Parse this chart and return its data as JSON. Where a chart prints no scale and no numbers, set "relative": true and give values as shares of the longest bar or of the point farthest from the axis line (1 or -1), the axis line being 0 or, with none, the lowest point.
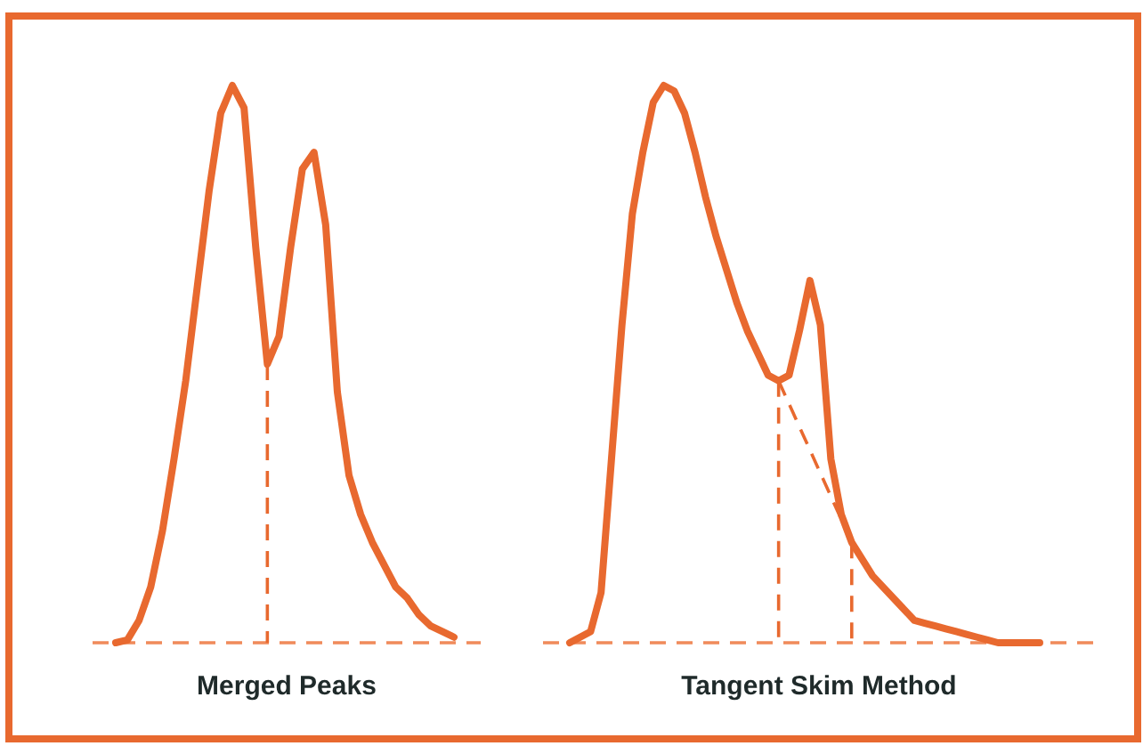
{
  "chart_data": [
    {
      "type": "line",
      "relative": true,
      "xlabel": "Merged Peaks",
      "marker": "none",
      "line_style": "solid",
      "categories": [
        null,
        null,
        null,
        null,
        null,
        null,
        null,
        null,
        null,
        null,
        null,
        null,
        null,
        null,
        null,
        null,
        null,
        null,
        null,
        null,
        null,
        null,
        null,
        null,
        null,
        null,
        null,
        null,
        null,
        null
      ],
      "series": [
        {
          "color": "#e8692f",
          "values": [
            0,
            0.005,
            0.04,
            0.1,
            0.2,
            0.33,
            0.47,
            0.64,
            0.81,
            0.95,
            1,
            0.96,
            0.71,
            0.5,
            0.55,
            0.71,
            0.85,
            0.88,
            0.75,
            0.45,
            0.3,
            0.23,
            0.18,
            0.14,
            0.1,
            0.08,
            0.05,
            0.03,
            0.02,
            0.01
          ]
        }
      ]
    },
    {
      "type": "line",
      "relative": true,
      "xlabel": "Tangent Skim Method",
      "marker": "none",
      "line_style": "solid",
      "categories": [
        null,
        null,
        null,
        null,
        null,
        null,
        null,
        null,
        null,
        null,
        null,
        null,
        null,
        null,
        null,
        null,
        null,
        null,
        null,
        null,
        null,
        null,
        null,
        null,
        null,
        null,
        null,
        null,
        null,
        null,
        null,
        null,
        null,
        null,
        null,
        null,
        null,
        null,
        null,
        null,
        null,
        null,
        null,
        null,
        null,
        null
      ],
      "series": [
        {
          "color": "#e8692f",
          "values": [
            0,
            0.01,
            0.02,
            0.09,
            0.33,
            0.57,
            0.77,
            0.88,
            0.97,
            1,
            0.99,
            0.95,
            0.88,
            0.8,
            0.73,
            0.67,
            0.61,
            0.56,
            0.52,
            0.48,
            0.47,
            0.48,
            0.56,
            0.65,
            0.57,
            0.33,
            0.23,
            0.18,
            0.15,
            0.12,
            0.1,
            0.08,
            0.06,
            0.04,
            0.035,
            0.03,
            0.025,
            0.02,
            0.015,
            0.01,
            0.005,
            0,
            0,
            0,
            0,
            0
          ]
        }
      ]
    }
  ]
}
